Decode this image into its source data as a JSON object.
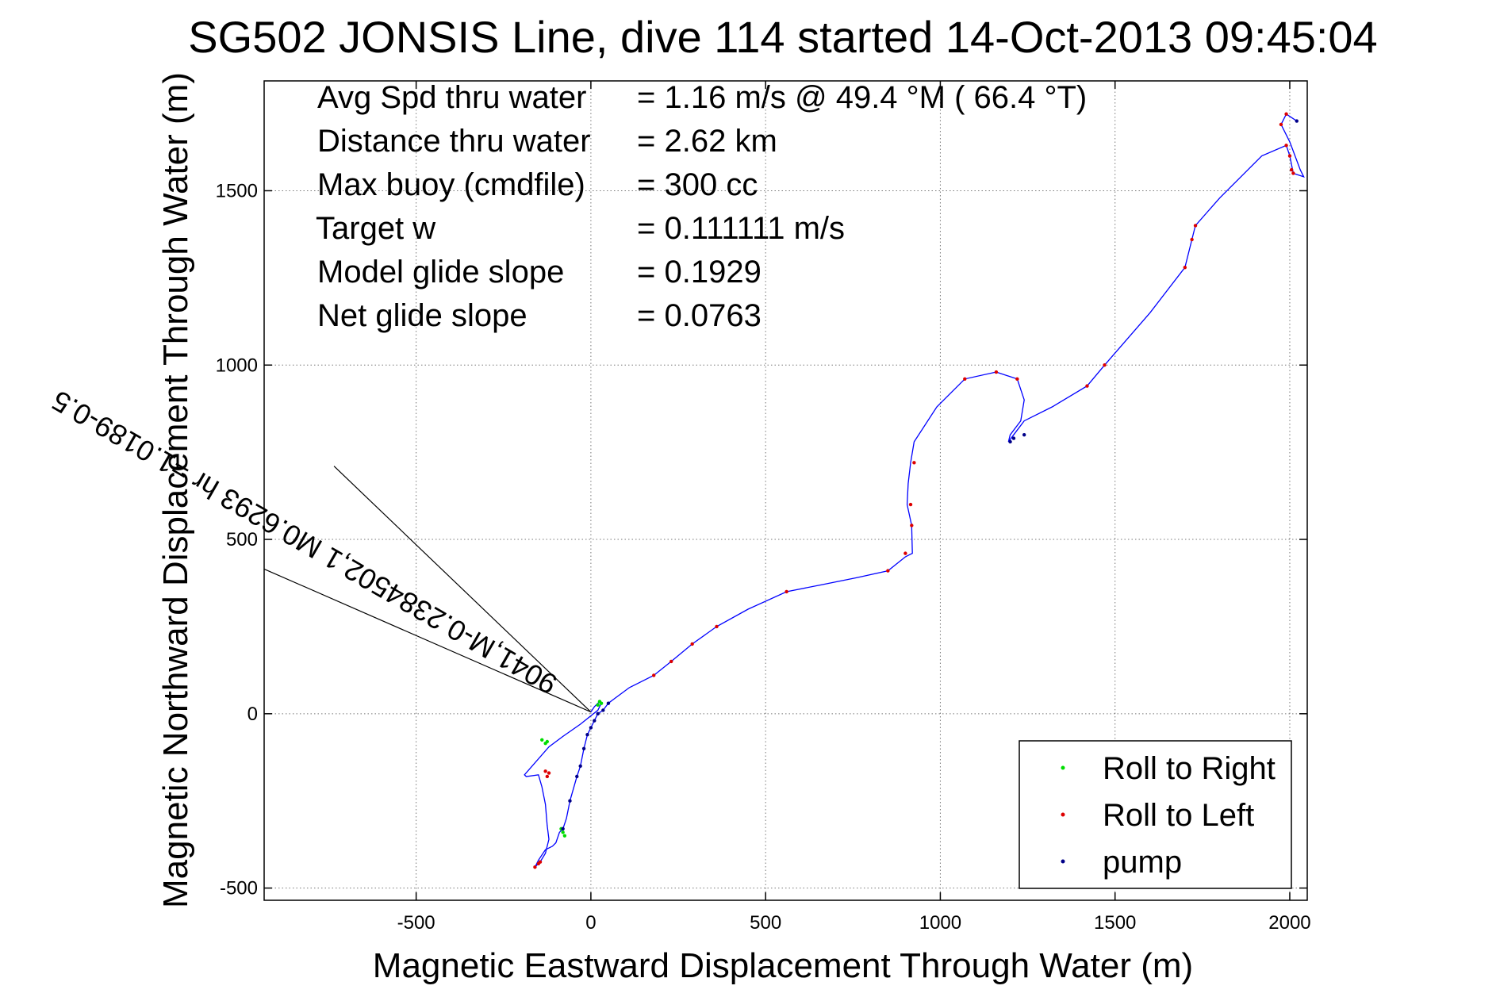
{
  "chart_data": {
    "type": "line",
    "title": "SG502 JONSIS Line, dive 114 started 14-Oct-2013 09:45:04",
    "xlabel": "Magnetic Eastward Displacement Through Water (m)",
    "ylabel": "Magnetic Northward Displacement Through Water (m)",
    "xlim": [
      -935,
      2050
    ],
    "ylim": [
      -535,
      1815
    ],
    "xticks": [
      -500,
      0,
      500,
      1000,
      1500,
      2000
    ],
    "yticks": [
      -500,
      0,
      500,
      1000,
      1500
    ],
    "grid": true,
    "legend_position": "bottom-right",
    "annotations": [
      {
        "label": "Avg Spd thru water",
        "value": "=  1.16 m/s @  49.4 °M ( 66.4 °T)"
      },
      {
        "label": "Distance thru water",
        "value": "=  2.62 km"
      },
      {
        "label": "Max buoy (cmdfile)",
        "value": "= 300 cc"
      },
      {
        "label": "Target w",
        "value": "= 0.111111 m/s"
      },
      {
        "label": "Model glide slope",
        "value": "= 0.1929"
      },
      {
        "label": "Net glide slope",
        "value": "= 0.0763"
      }
    ],
    "current_label": "9041,M-0.2384502,1 M0.6293 hr =1.0189-0.5",
    "current_lines": [
      {
        "from": [
          0,
          5
        ],
        "to": [
          -735,
          710
        ]
      },
      {
        "from": [
          0,
          5
        ],
        "to": [
          -935,
          415
        ]
      }
    ],
    "track": {
      "x": [
        0,
        10,
        25,
        30,
        20,
        -30,
        -80,
        -120,
        -190,
        -185,
        -150,
        -140,
        -130,
        -125,
        -120,
        -130,
        -145,
        -160,
        -150,
        -130,
        -110,
        -100,
        -90,
        -80,
        -70,
        -60,
        -40,
        -30,
        -20,
        -10,
        0,
        10,
        20,
        35,
        50,
        70,
        90,
        110,
        140,
        180,
        230,
        290,
        360,
        450,
        560,
        660,
        760,
        850,
        900,
        920,
        918,
        905,
        908,
        915,
        925,
        990,
        1070,
        1160,
        1220,
        1240,
        1230,
        1200,
        1195,
        1210,
        1240,
        1320,
        1420,
        1470,
        1600,
        1700,
        1720,
        1730,
        1800,
        1860,
        1920,
        1990,
        2000,
        2010,
        2040,
        2030,
        2000,
        1975,
        1990,
        2020
      ],
      "y": [
        5,
        20,
        35,
        30,
        10,
        -30,
        -65,
        -95,
        -175,
        -180,
        -175,
        -210,
        -260,
        -320,
        -360,
        -400,
        -425,
        -440,
        -420,
        -390,
        -380,
        -370,
        -340,
        -330,
        -300,
        -250,
        -180,
        -150,
        -100,
        -60,
        -40,
        -20,
        0,
        10,
        30,
        45,
        60,
        75,
        90,
        110,
        150,
        200,
        250,
        300,
        350,
        370,
        390,
        410,
        450,
        460,
        540,
        600,
        660,
        720,
        780,
        880,
        960,
        980,
        960,
        900,
        840,
        800,
        780,
        800,
        840,
        880,
        940,
        1000,
        1150,
        1280,
        1360,
        1400,
        1480,
        1540,
        1600,
        1630,
        1600,
        1550,
        1540,
        1560,
        1640,
        1690,
        1720,
        1700
      ]
    },
    "series": [
      {
        "name": "Roll to Right",
        "color": "#00dd00",
        "marker": "dot",
        "x": [
          25,
          30,
          20,
          -125,
          -130,
          -140,
          -85,
          -80,
          -75
        ],
        "y": [
          35,
          30,
          25,
          -80,
          -85,
          -75,
          -330,
          -340,
          -350
        ]
      },
      {
        "name": "Roll to Left",
        "color": "#dd0000",
        "marker": "dot",
        "x": [
          -120,
          -125,
          -130,
          -150,
          -160,
          -145,
          180,
          230,
          290,
          360,
          560,
          850,
          900,
          915,
          918,
          925,
          1070,
          1160,
          1220,
          1420,
          1470,
          1700,
          1720,
          1730,
          1990,
          2000,
          2005,
          2010,
          1975,
          1990
        ],
        "y": [
          -170,
          -180,
          -165,
          -430,
          -440,
          -425,
          110,
          150,
          200,
          250,
          350,
          410,
          460,
          600,
          540,
          720,
          960,
          980,
          960,
          940,
          1000,
          1280,
          1360,
          1400,
          1630,
          1600,
          1560,
          1550,
          1690,
          1720
        ]
      },
      {
        "name": "pump",
        "color": "#000088",
        "marker": "dot",
        "x": [
          -80,
          -60,
          -40,
          -30,
          -20,
          -10,
          0,
          10,
          20,
          35,
          50,
          1200,
          1210,
          1240,
          2020
        ],
        "y": [
          -330,
          -250,
          -180,
          -150,
          -100,
          -60,
          -40,
          -20,
          0,
          10,
          30,
          780,
          790,
          800,
          1700
        ]
      }
    ],
    "line_color": "#0000ff"
  }
}
